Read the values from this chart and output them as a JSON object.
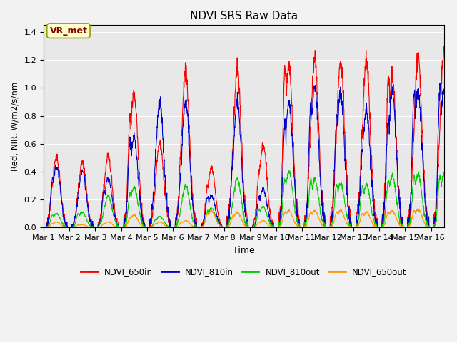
{
  "title": "NDVI SRS Raw Data",
  "xlabel": "Time",
  "ylabel": "Red, NIR, W/m2/s/nm",
  "ylim": [
    0,
    1.45
  ],
  "yticks": [
    0.0,
    0.2,
    0.4,
    0.6,
    0.8,
    1.0,
    1.2,
    1.4
  ],
  "fig_bg": "#f2f2f2",
  "axes_bg": "#e8e8e8",
  "annotation_text": "VR_met",
  "annotation_color": "#8b0000",
  "annotation_bg": "#ffffcc",
  "annotation_edge": "#999900",
  "series": {
    "NDVI_650in": {
      "color": "#ff0000",
      "lw": 0.8
    },
    "NDVI_810in": {
      "color": "#0000cc",
      "lw": 0.8
    },
    "NDVI_810out": {
      "color": "#00cc00",
      "lw": 0.8
    },
    "NDVI_650out": {
      "color": "#ff9900",
      "lw": 0.8
    }
  },
  "x_tick_labels": [
    "Mar 1",
    "Mar 2",
    "Mar 3",
    "Mar 4",
    "Mar 5",
    "Mar 6",
    "Mar 7",
    "Mar 8",
    "Mar 9",
    "Mar 10",
    "Mar 11",
    "Mar 12",
    "Mar 13",
    "Mar 14",
    "Mar 15",
    "Mar 16"
  ],
  "grid_color": "#ffffff",
  "grid_lw": 0.8,
  "peaks_650in": [
    0.51,
    0.47,
    0.51,
    0.97,
    0.61,
    1.12,
    0.43,
    1.13,
    0.59,
    1.15,
    1.21,
    1.2,
    1.2,
    1.08,
    1.24,
    1.26
  ],
  "peaks_810in": [
    0.44,
    0.4,
    0.35,
    0.65,
    0.9,
    0.9,
    0.23,
    0.9,
    0.28,
    0.9,
    1.02,
    0.95,
    0.85,
    0.98,
    0.97,
    1.0
  ],
  "peaks_810out": [
    0.1,
    0.11,
    0.23,
    0.29,
    0.08,
    0.3,
    0.14,
    0.35,
    0.15,
    0.4,
    0.35,
    0.32,
    0.31,
    0.37,
    0.38,
    0.38
  ],
  "peaks_650out": [
    0.04,
    0.02,
    0.04,
    0.09,
    0.04,
    0.05,
    0.12,
    0.11,
    0.05,
    0.12,
    0.12,
    0.12,
    0.11,
    0.12,
    0.13,
    0.0
  ],
  "secondary_650in": [
    0.31,
    0.18,
    0.31,
    0.8,
    0.3,
    0.67,
    0.3,
    0.56,
    0.4,
    1.15,
    0.69,
    0.67,
    0.7,
    1.08,
    0.68,
    0.66
  ],
  "secondary_810in": [
    0.35,
    0.17,
    0.27,
    0.61,
    0.25,
    0.38,
    0.22,
    0.54,
    0.22,
    0.75,
    0.88,
    0.78,
    0.55,
    0.78,
    0.98,
    0.99
  ],
  "secondary_810out": [
    0.09,
    0.1,
    0.1,
    0.24,
    0.06,
    0.13,
    0.12,
    0.17,
    0.13,
    0.35,
    0.34,
    0.31,
    0.3,
    0.34,
    0.36,
    0.37
  ],
  "secondary_650out": [
    0.03,
    0.02,
    0.03,
    0.07,
    0.03,
    0.04,
    0.1,
    0.09,
    0.04,
    0.11,
    0.11,
    0.11,
    0.1,
    0.11,
    0.12,
    0.0
  ]
}
